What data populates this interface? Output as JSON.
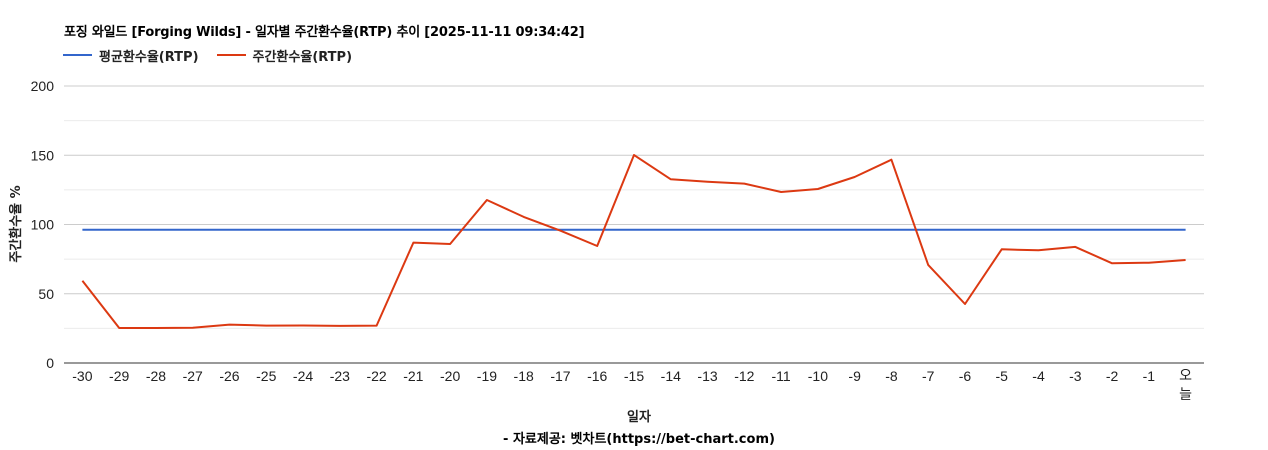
{
  "header": {
    "title": "포징 와일드 [Forging Wilds] - 일자별 주간환수율(RTP) 추이 [2025-11-11 09:34:42]"
  },
  "legend": {
    "items": [
      {
        "label": "평균환수율(RTP)",
        "color": "#3366CC"
      },
      {
        "label": "주간환수율(RTP)",
        "color": "#DC3912"
      }
    ]
  },
  "axes": {
    "y_title": "주간환수율 %",
    "x_title": "일자"
  },
  "footer": {
    "source": "- 자료제공: 벳차트(https://bet-chart.com)"
  },
  "chart_data": {
    "type": "line",
    "title": "포징 와일드 [Forging Wilds] - 일자별 주간환수율(RTP) 추이 [2025-11-11 09:34:42]",
    "xlabel": "일자",
    "ylabel": "주간환수율 %",
    "ylim": [
      0,
      200
    ],
    "yticks": [
      0,
      50,
      100,
      150,
      200
    ],
    "grid": true,
    "legend_position": "top",
    "categories": [
      "-30",
      "-29",
      "-28",
      "-27",
      "-26",
      "-25",
      "-24",
      "-23",
      "-22",
      "-21",
      "-20",
      "-19",
      "-18",
      "-17",
      "-16",
      "-15",
      "-14",
      "-13",
      "-12",
      "-11",
      "-10",
      "-9",
      "-8",
      "-7",
      "-6",
      "-5",
      "-4",
      "-3",
      "-2",
      "-1",
      "오늘"
    ],
    "series": [
      {
        "name": "평균환수율(RTP)",
        "color": "#3366CC",
        "values": [
          96.2,
          96.2,
          96.2,
          96.2,
          96.2,
          96.2,
          96.2,
          96.2,
          96.2,
          96.2,
          96.2,
          96.2,
          96.2,
          96.2,
          96.2,
          96.2,
          96.2,
          96.2,
          96.2,
          96.2,
          96.2,
          96.2,
          96.2,
          96.2,
          96.2,
          96.2,
          96.2,
          96.2,
          96.2,
          96.2,
          96.2
        ]
      },
      {
        "name": "주간환수율(RTP)",
        "color": "#DC3912",
        "values": [
          59.4,
          25.3,
          25.3,
          25.4,
          27.7,
          27.0,
          27.1,
          26.8,
          27.0,
          86.9,
          85.9,
          117.7,
          105.5,
          95.5,
          84.5,
          150.2,
          132.6,
          130.9,
          129.5,
          123.5,
          125.6,
          134.3,
          146.8,
          70.8,
          42.6,
          82.1,
          81.4,
          83.8,
          72.0,
          72.4,
          74.4
        ]
      }
    ]
  }
}
